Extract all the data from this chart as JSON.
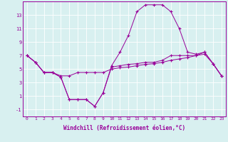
{
  "xlabel": "Windchill (Refroidissement éolien,°C)",
  "x": [
    0,
    1,
    2,
    3,
    4,
    5,
    6,
    7,
    8,
    9,
    10,
    11,
    12,
    13,
    14,
    15,
    16,
    17,
    18,
    19,
    20,
    21,
    22,
    23
  ],
  "line1": [
    7.0,
    6.0,
    4.5,
    4.5,
    4.0,
    4.0,
    4.5,
    4.5,
    4.5,
    4.5,
    5.0,
    5.2,
    5.3,
    5.5,
    5.7,
    5.8,
    6.0,
    6.3,
    6.5,
    6.7,
    7.0,
    7.2,
    5.8,
    4.0
  ],
  "line2": [
    7.0,
    6.0,
    4.5,
    4.5,
    3.8,
    0.5,
    0.5,
    0.5,
    -0.5,
    1.5,
    5.5,
    7.5,
    10.0,
    13.5,
    14.5,
    14.5,
    14.5,
    13.5,
    11.0,
    7.5,
    7.2,
    7.5,
    5.8,
    4.0
  ],
  "line3": [
    7.0,
    6.0,
    4.5,
    4.5,
    3.8,
    0.5,
    0.5,
    0.5,
    -0.5,
    1.5,
    5.3,
    5.5,
    5.7,
    5.8,
    6.0,
    6.0,
    6.3,
    7.0,
    7.0,
    7.0,
    7.0,
    7.5,
    5.8,
    4.0
  ],
  "line_color": "#990099",
  "bg_color": "#d8f0f0",
  "plot_bg": "#d8f0f0",
  "grid_color": "#ffffff",
  "ylim": [
    -2,
    15
  ],
  "xlim": [
    -0.5,
    23.5
  ],
  "yticks": [
    -1,
    1,
    3,
    5,
    7,
    9,
    11,
    13
  ],
  "xticks": [
    0,
    1,
    2,
    3,
    4,
    5,
    6,
    7,
    8,
    9,
    10,
    11,
    12,
    13,
    14,
    15,
    16,
    17,
    18,
    19,
    20,
    21,
    22,
    23
  ]
}
